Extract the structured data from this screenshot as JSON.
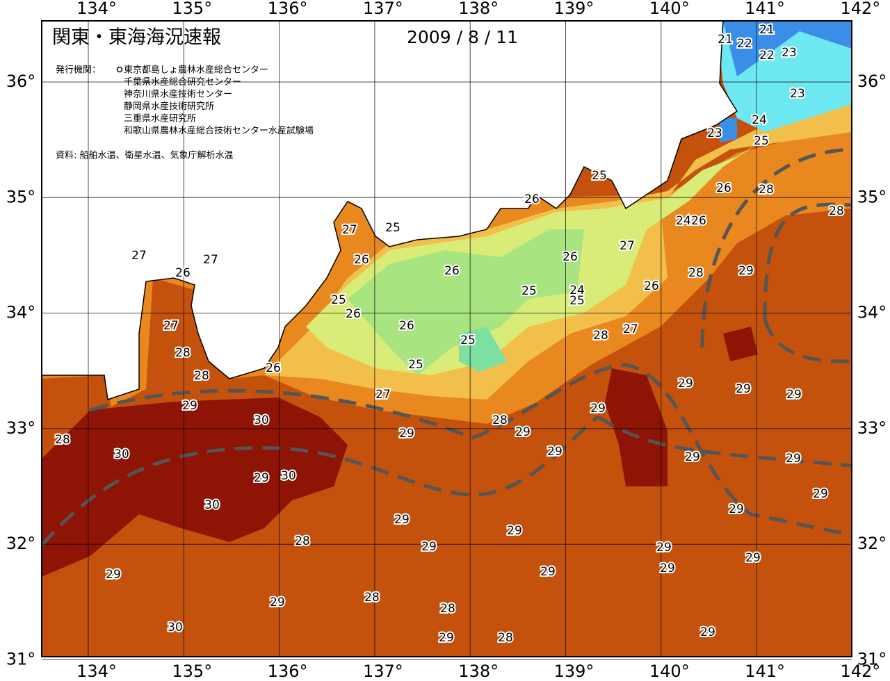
{
  "header": {
    "title": "関東・東海海況速報",
    "date": "2009 / 8 / 11"
  },
  "publishers": {
    "label": "発行機関：",
    "items": [
      "東京都島しょ農林水産総合センター",
      "千葉県水産総合研究センター",
      "神奈川県水産技術センター",
      "静岡県水産技術研究所",
      "三重県水産研究所",
      "和歌山県農林水産総合技術センター水産試験場"
    ]
  },
  "source": "資料: 船舶水温、衛星水温、気象庁解析水温",
  "map": {
    "lon_ticks": [
      {
        "value": 134,
        "label": "134°"
      },
      {
        "value": 135,
        "label": "135°"
      },
      {
        "value": 136,
        "label": "136°"
      },
      {
        "value": 137,
        "label": "137°"
      },
      {
        "value": 138,
        "label": "138°"
      },
      {
        "value": 139,
        "label": "139°"
      },
      {
        "value": 140,
        "label": "140°"
      },
      {
        "value": 141,
        "label": "141°"
      },
      {
        "value": 142,
        "label": "142°"
      }
    ],
    "lat_ticks": [
      {
        "value": 31,
        "label": "31°"
      },
      {
        "value": 32,
        "label": "32°"
      },
      {
        "value": 33,
        "label": "33°"
      },
      {
        "value": 34,
        "label": "34°"
      },
      {
        "value": 35,
        "label": "35°"
      },
      {
        "value": 36,
        "label": "36°"
      }
    ],
    "contour_labels": [
      21,
      21,
      22,
      22,
      23,
      23,
      24,
      23,
      25,
      25,
      26,
      26,
      28,
      28,
      27,
      25,
      24,
      26,
      27,
      27,
      27,
      26,
      26,
      29,
      28,
      26,
      26,
      25,
      24,
      25,
      26,
      25,
      26,
      27,
      26,
      27,
      28,
      25,
      28,
      25,
      28,
      26,
      29,
      29,
      29,
      27,
      29,
      29,
      30,
      28,
      29,
      29,
      28,
      30,
      29,
      29,
      29,
      29,
      30,
      29,
      30,
      29,
      29,
      29,
      28,
      29,
      29,
      29,
      29,
      29,
      29,
      29,
      28,
      28,
      30,
      29,
      28,
      29
    ]
  }
}
